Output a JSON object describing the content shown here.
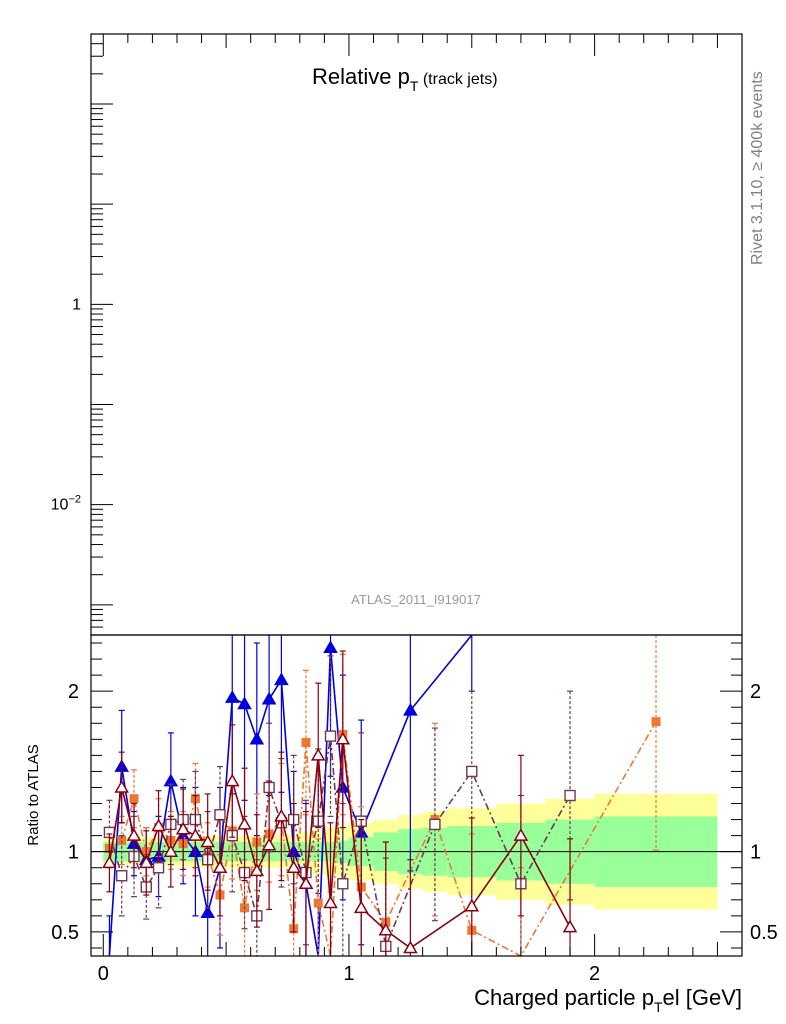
{
  "chart_data": {
    "type": "scatter",
    "title": "Relative p",
    "title_sub": "T",
    "title_suffix": " (track jets)",
    "side_label": "Rivet 3.1.10, ≥ 400k events",
    "analysis_label": "ATLAS_2011_I919017",
    "xlabel": "Charged particle p",
    "xlabel_sub": "T",
    "xlabel_suffix": "el [GeV]",
    "ylabel": "Ratio to ATLAS",
    "xlim": [
      -0.05,
      2.6
    ],
    "main_yscale": "log",
    "main_ylim": [
      0.0005,
      500
    ],
    "main_yticks": [
      {
        "v": 1,
        "label": "1"
      },
      {
        "v": 0.01,
        "label": "10",
        "sup": "−2"
      }
    ],
    "ratio_ylim": [
      0.35,
      2.35
    ],
    "ratio_yticks": [
      {
        "v": 0.5,
        "label": "0.5"
      },
      {
        "v": 1,
        "label": "1"
      },
      {
        "v": 2,
        "label": "2"
      }
    ],
    "xticks": [
      {
        "v": 0,
        "label": "0"
      },
      {
        "v": 1,
        "label": "1"
      },
      {
        "v": 2,
        "label": "2"
      }
    ],
    "reference_line": 1,
    "colors": {
      "green_band": "#99ff99",
      "yellow_band": "#ffff99",
      "blue": "#0000dd",
      "orange": "#ee7733",
      "purple": "#6e3a52",
      "red": "#8b0010"
    },
    "bins": [
      0,
      0.05,
      0.1,
      0.15,
      0.2,
      0.25,
      0.3,
      0.35,
      0.4,
      0.45,
      0.5,
      0.55,
      0.6,
      0.65,
      0.7,
      0.75,
      0.8,
      0.85,
      0.9,
      0.95,
      1.0,
      1.1,
      1.2,
      1.3,
      1.4,
      1.6,
      1.8,
      2.0,
      2.5
    ],
    "band_green": [
      0.06,
      0.06,
      0.06,
      0.06,
      0.06,
      0.06,
      0.06,
      0.06,
      0.06,
      0.06,
      0.06,
      0.06,
      0.06,
      0.06,
      0.06,
      0.06,
      0.06,
      0.06,
      0.06,
      0.07,
      0.09,
      0.12,
      0.14,
      0.15,
      0.16,
      0.18,
      0.2,
      0.22
    ],
    "band_yellow": [
      0.08,
      0.08,
      0.08,
      0.09,
      0.09,
      0.09,
      0.09,
      0.1,
      0.1,
      0.1,
      0.1,
      0.1,
      0.1,
      0.1,
      0.1,
      0.11,
      0.12,
      0.14,
      0.15,
      0.16,
      0.18,
      0.2,
      0.23,
      0.25,
      0.27,
      0.3,
      0.33,
      0.36
    ],
    "series": [
      {
        "color": "#0000dd",
        "marker": "triangle-filled",
        "line": "solid",
        "points": [
          {
            "x": 0.025,
            "y": 0.2,
            "e": 0.4
          },
          {
            "x": 0.075,
            "y": 1.53,
            "e": 0.35
          },
          {
            "x": 0.125,
            "y": 1.05,
            "e": 0.2
          },
          {
            "x": 0.175,
            "y": 0.95,
            "e": 0.2
          },
          {
            "x": 0.225,
            "y": 0.97,
            "e": 0.25
          },
          {
            "x": 0.275,
            "y": 1.44,
            "e": 0.3
          },
          {
            "x": 0.325,
            "y": 1.1,
            "e": 0.3
          },
          {
            "x": 0.375,
            "y": 1.0,
            "e": 0.4
          },
          {
            "x": 0.425,
            "y": 0.62,
            "e": 0.4
          },
          {
            "x": 0.475,
            "y": 0.9,
            "e": 0.5
          },
          {
            "x": 0.525,
            "y": 1.96,
            "e": 0.6
          },
          {
            "x": 0.575,
            "y": 1.92,
            "e": 0.6
          },
          {
            "x": 0.625,
            "y": 1.7,
            "e": 0.6
          },
          {
            "x": 0.675,
            "y": 1.95,
            "e": 0.6
          },
          {
            "x": 0.725,
            "y": 2.07,
            "e": 0.7
          },
          {
            "x": 0.775,
            "y": 1.0,
            "e": 0.5
          },
          {
            "x": 0.825,
            "y": 0.8,
            "e": 0.5
          },
          {
            "x": 0.875,
            "y": 0.2,
            "e": 0.5
          },
          {
            "x": 0.925,
            "y": 2.27,
            "e": 0.8
          },
          {
            "x": 0.975,
            "y": 1.4,
            "e": 0.7
          },
          {
            "x": 1.05,
            "y": 1.12,
            "e": 0.7
          },
          {
            "x": 1.25,
            "y": 1.88,
            "e": 1.0
          },
          {
            "x": 1.5,
            "y": 3.2,
            "e": 1.2
          }
        ]
      },
      {
        "color": "#ee7733",
        "marker": "square-filled",
        "line": "dashdot",
        "points": [
          {
            "x": 0.025,
            "y": 1.02,
            "e": 0.12
          },
          {
            "x": 0.075,
            "y": 1.07,
            "e": 0.15
          },
          {
            "x": 0.125,
            "y": 1.33,
            "e": 0.18
          },
          {
            "x": 0.175,
            "y": 1.0,
            "e": 0.15
          },
          {
            "x": 0.225,
            "y": 1.15,
            "e": 0.18
          },
          {
            "x": 0.275,
            "y": 1.07,
            "e": 0.18
          },
          {
            "x": 0.325,
            "y": 1.05,
            "e": 0.2
          },
          {
            "x": 0.375,
            "y": 1.33,
            "e": 0.22
          },
          {
            "x": 0.425,
            "y": 0.98,
            "e": 0.2
          },
          {
            "x": 0.475,
            "y": 0.73,
            "e": 0.25
          },
          {
            "x": 0.525,
            "y": 1.13,
            "e": 0.3
          },
          {
            "x": 0.575,
            "y": 0.65,
            "e": 0.3
          },
          {
            "x": 0.625,
            "y": 1.06,
            "e": 0.3
          },
          {
            "x": 0.675,
            "y": 1.11,
            "e": 0.3
          },
          {
            "x": 0.725,
            "y": 1.2,
            "e": 0.35
          },
          {
            "x": 0.775,
            "y": 0.52,
            "e": 0.35
          },
          {
            "x": 0.825,
            "y": 1.68,
            "e": 0.45
          },
          {
            "x": 0.875,
            "y": 0.68,
            "e": 0.4
          },
          {
            "x": 0.925,
            "y": 0.3,
            "e": 0.45
          },
          {
            "x": 0.975,
            "y": 1.73,
            "e": 0.5
          },
          {
            "x": 1.05,
            "y": 0.78,
            "e": 0.5
          },
          {
            "x": 1.15,
            "y": 0.56,
            "e": 0.5
          },
          {
            "x": 1.35,
            "y": 1.2,
            "e": 0.6
          },
          {
            "x": 1.5,
            "y": 0.51,
            "e": 0.6
          },
          {
            "x": 1.7,
            "y": 0.3,
            "e": 0.6
          },
          {
            "x": 2.25,
            "y": 1.81,
            "e": 0.8
          }
        ]
      },
      {
        "color": "#6e3a52",
        "marker": "square-open",
        "line": "dashdot",
        "points": [
          {
            "x": 0.025,
            "y": 1.12,
            "e": 0.2
          },
          {
            "x": 0.075,
            "y": 0.85,
            "e": 0.25
          },
          {
            "x": 0.125,
            "y": 0.97,
            "e": 0.25
          },
          {
            "x": 0.175,
            "y": 0.78,
            "e": 0.2
          },
          {
            "x": 0.225,
            "y": 0.9,
            "e": 0.25
          },
          {
            "x": 0.275,
            "y": 1.17,
            "e": 0.25
          },
          {
            "x": 0.325,
            "y": 1.2,
            "e": 0.25
          },
          {
            "x": 0.375,
            "y": 1.2,
            "e": 0.3
          },
          {
            "x": 0.425,
            "y": 0.95,
            "e": 0.3
          },
          {
            "x": 0.475,
            "y": 1.23,
            "e": 0.3
          },
          {
            "x": 0.525,
            "y": 1.1,
            "e": 0.35
          },
          {
            "x": 0.575,
            "y": 0.87,
            "e": 0.35
          },
          {
            "x": 0.625,
            "y": 0.6,
            "e": 0.35
          },
          {
            "x": 0.675,
            "y": 1.4,
            "e": 0.4
          },
          {
            "x": 0.725,
            "y": 1.18,
            "e": 0.4
          },
          {
            "x": 0.775,
            "y": 1.2,
            "e": 0.4
          },
          {
            "x": 0.825,
            "y": 0.87,
            "e": 0.45
          },
          {
            "x": 0.875,
            "y": 1.19,
            "e": 0.45
          },
          {
            "x": 0.925,
            "y": 1.72,
            "e": 0.5
          },
          {
            "x": 0.975,
            "y": 0.8,
            "e": 0.5
          },
          {
            "x": 1.05,
            "y": 1.19,
            "e": 0.55
          },
          {
            "x": 1.15,
            "y": 0.41,
            "e": 0.55
          },
          {
            "x": 1.35,
            "y": 1.17,
            "e": 0.6
          },
          {
            "x": 1.5,
            "y": 1.5,
            "e": 0.5
          },
          {
            "x": 1.7,
            "y": 0.8,
            "e": 0.55
          },
          {
            "x": 1.9,
            "y": 1.35,
            "e": 0.65
          }
        ]
      },
      {
        "color": "#8b0010",
        "marker": "triangle-open",
        "line": "solid",
        "points": [
          {
            "x": 0.025,
            "y": 0.93,
            "e": 0.18
          },
          {
            "x": 0.075,
            "y": 1.4,
            "e": 0.22
          },
          {
            "x": 0.125,
            "y": 1.1,
            "e": 0.2
          },
          {
            "x": 0.175,
            "y": 0.93,
            "e": 0.2
          },
          {
            "x": 0.225,
            "y": 1.16,
            "e": 0.22
          },
          {
            "x": 0.275,
            "y": 1.0,
            "e": 0.22
          },
          {
            "x": 0.325,
            "y": 1.14,
            "e": 0.25
          },
          {
            "x": 0.375,
            "y": 1.1,
            "e": 0.25
          },
          {
            "x": 0.425,
            "y": 1.06,
            "e": 0.3
          },
          {
            "x": 0.475,
            "y": 0.9,
            "e": 0.3
          },
          {
            "x": 0.525,
            "y": 1.44,
            "e": 0.35
          },
          {
            "x": 0.575,
            "y": 1.17,
            "e": 0.35
          },
          {
            "x": 0.625,
            "y": 0.88,
            "e": 0.35
          },
          {
            "x": 0.675,
            "y": 1.04,
            "e": 0.4
          },
          {
            "x": 0.725,
            "y": 1.22,
            "e": 0.4
          },
          {
            "x": 0.775,
            "y": 0.9,
            "e": 0.4
          },
          {
            "x": 0.825,
            "y": 0.8,
            "e": 0.45
          },
          {
            "x": 0.875,
            "y": 1.6,
            "e": 0.45
          },
          {
            "x": 0.925,
            "y": 0.68,
            "e": 0.5
          },
          {
            "x": 0.975,
            "y": 1.7,
            "e": 0.55
          },
          {
            "x": 1.05,
            "y": 0.65,
            "e": 0.55
          },
          {
            "x": 1.15,
            "y": 0.51,
            "e": 0.55
          },
          {
            "x": 1.25,
            "y": 0.4,
            "e": 0.55
          },
          {
            "x": 1.5,
            "y": 0.66,
            "e": 0.55
          },
          {
            "x": 1.7,
            "y": 1.1,
            "e": 0.5
          },
          {
            "x": 1.9,
            "y": 0.53,
            "e": 0.55
          }
        ]
      }
    ]
  }
}
